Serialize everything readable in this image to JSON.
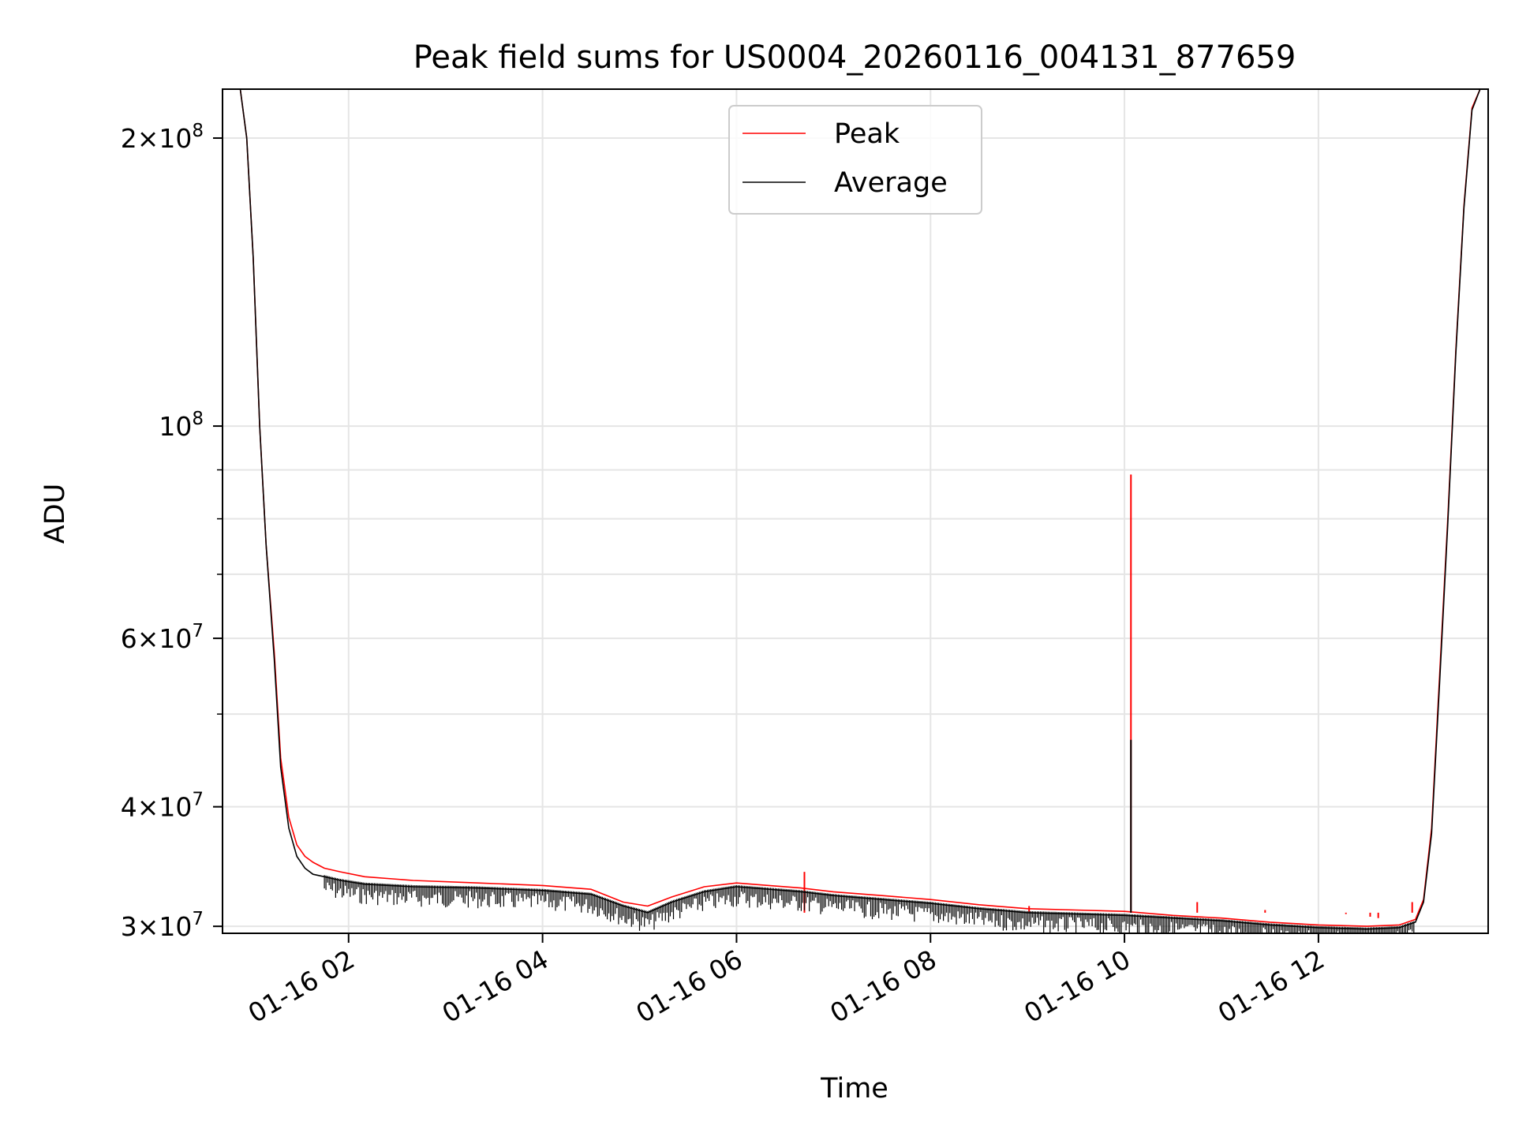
{
  "chart_data": {
    "type": "line",
    "title": "Peak field sums for US0004_20260116_004131_877659",
    "xlabel": "Time",
    "ylabel": "ADU",
    "y_scale": "log",
    "x_axis_type": "datetime",
    "xlim": [
      "2026-01-16 00:42",
      "2026-01-16 13:45"
    ],
    "ylim": [
      29500000,
      225000000
    ],
    "grid": true,
    "legend_placement": "upper center",
    "x_ticks": [
      {
        "value": "2026-01-16 02:00",
        "label": "01-16 02"
      },
      {
        "value": "2026-01-16 04:00",
        "label": "01-16 04"
      },
      {
        "value": "2026-01-16 06:00",
        "label": "01-16 06"
      },
      {
        "value": "2026-01-16 08:00",
        "label": "01-16 08"
      },
      {
        "value": "2026-01-16 10:00",
        "label": "01-16 10"
      },
      {
        "value": "2026-01-16 12:00",
        "label": "01-16 12"
      }
    ],
    "y_ticks": [
      {
        "value": 30000000,
        "mantissa": "3",
        "exponent": "7"
      },
      {
        "value": 40000000,
        "mantissa": "4",
        "exponent": "7"
      },
      {
        "value": 60000000,
        "mantissa": "6",
        "exponent": "7"
      },
      {
        "value": 100000000,
        "mantissa": "",
        "exponent": "8"
      },
      {
        "value": 200000000,
        "mantissa": "2",
        "exponent": "8"
      }
    ],
    "y_minor_ticks": [
      50000000,
      70000000,
      80000000,
      90000000
    ],
    "series": [
      {
        "name": "Peak",
        "color": "#ff0000",
        "x": [
          "2026-01-16 00:42",
          "2026-01-16 00:53",
          "2026-01-16 00:57",
          "2026-01-16 01:01",
          "2026-01-16 01:05",
          "2026-01-16 01:09",
          "2026-01-16 01:14",
          "2026-01-16 01:18",
          "2026-01-16 01:23",
          "2026-01-16 01:28",
          "2026-01-16 01:33",
          "2026-01-16 01:38",
          "2026-01-16 01:45",
          "2026-01-16 01:55",
          "2026-01-16 02:10",
          "2026-01-16 02:40",
          "2026-01-16 03:20",
          "2026-01-16 04:00",
          "2026-01-16 04:30",
          "2026-01-16 04:50",
          "2026-01-16 05:05",
          "2026-01-16 05:20",
          "2026-01-16 05:40",
          "2026-01-16 06:00",
          "2026-01-16 06:20",
          "2026-01-16 06:40",
          "2026-01-16 07:00",
          "2026-01-16 07:30",
          "2026-01-16 08:00",
          "2026-01-16 08:30",
          "2026-01-16 09:00",
          "2026-01-16 09:30",
          "2026-01-16 10:00",
          "2026-01-16 10:30",
          "2026-01-16 11:00",
          "2026-01-16 11:30",
          "2026-01-16 12:00",
          "2026-01-16 12:30",
          "2026-01-16 12:50",
          "2026-01-16 13:00",
          "2026-01-16 13:05",
          "2026-01-16 13:10",
          "2026-01-16 13:15",
          "2026-01-16 13:20",
          "2026-01-16 13:25",
          "2026-01-16 13:30",
          "2026-01-16 13:35",
          "2026-01-16 13:40",
          "2026-01-16 13:45"
        ],
        "y": [
          225000000,
          225000000,
          200000000,
          150000000,
          100000000,
          75000000,
          58000000,
          45000000,
          39000000,
          36500000,
          35500000,
          35000000,
          34500000,
          34200000,
          33800000,
          33500000,
          33300000,
          33100000,
          32800000,
          31800000,
          31500000,
          32200000,
          33000000,
          33300000,
          33100000,
          32900000,
          32600000,
          32300000,
          32000000,
          31600000,
          31300000,
          31200000,
          31100000,
          30800000,
          30600000,
          30300000,
          30100000,
          30000000,
          30100000,
          30500000,
          32000000,
          38000000,
          55000000,
          80000000,
          120000000,
          170000000,
          215000000,
          225000000,
          225000000
        ],
        "spikes": [
          {
            "x": "2026-01-16 10:04",
            "y": 89000000
          },
          {
            "x": "2026-01-16 06:42",
            "y": 34200000
          },
          {
            "x": "2026-01-16 10:45",
            "y": 31800000
          },
          {
            "x": "2026-01-16 11:27",
            "y": 31200000
          },
          {
            "x": "2026-01-16 12:00",
            "y": 31000000
          },
          {
            "x": "2026-01-16 12:17",
            "y": 30900000
          },
          {
            "x": "2026-01-16 12:32",
            "y": 30700000
          },
          {
            "x": "2026-01-16 12:37",
            "y": 30600000
          },
          {
            "x": "2026-01-16 12:58",
            "y": 31800000
          },
          {
            "x": "2026-01-16 09:01",
            "y": 31500000
          }
        ]
      },
      {
        "name": "Average",
        "color": "#000000",
        "x": [
          "2026-01-16 00:42",
          "2026-01-16 00:53",
          "2026-01-16 00:57",
          "2026-01-16 01:01",
          "2026-01-16 01:05",
          "2026-01-16 01:09",
          "2026-01-16 01:14",
          "2026-01-16 01:18",
          "2026-01-16 01:23",
          "2026-01-16 01:28",
          "2026-01-16 01:33",
          "2026-01-16 01:38",
          "2026-01-16 01:45",
          "2026-01-16 01:55",
          "2026-01-16 02:10",
          "2026-01-16 02:40",
          "2026-01-16 03:20",
          "2026-01-16 04:00",
          "2026-01-16 04:30",
          "2026-01-16 04:50",
          "2026-01-16 05:05",
          "2026-01-16 05:20",
          "2026-01-16 05:40",
          "2026-01-16 06:00",
          "2026-01-16 06:20",
          "2026-01-16 06:40",
          "2026-01-16 07:00",
          "2026-01-16 07:30",
          "2026-01-16 08:00",
          "2026-01-16 08:30",
          "2026-01-16 09:00",
          "2026-01-16 09:30",
          "2026-01-16 10:00",
          "2026-01-16 10:30",
          "2026-01-16 11:00",
          "2026-01-16 11:30",
          "2026-01-16 12:00",
          "2026-01-16 12:30",
          "2026-01-16 12:50",
          "2026-01-16 13:00",
          "2026-01-16 13:05",
          "2026-01-16 13:10",
          "2026-01-16 13:15",
          "2026-01-16 13:20",
          "2026-01-16 13:25",
          "2026-01-16 13:30",
          "2026-01-16 13:35",
          "2026-01-16 13:40",
          "2026-01-16 13:45"
        ],
        "y": [
          225000000,
          225000000,
          200000000,
          150000000,
          100000000,
          75000000,
          57000000,
          44000000,
          38000000,
          35500000,
          34500000,
          34000000,
          33800000,
          33500000,
          33200000,
          33000000,
          32900000,
          32700000,
          32400000,
          31500000,
          31000000,
          31800000,
          32600000,
          33000000,
          32800000,
          32600000,
          32300000,
          32000000,
          31700000,
          31300000,
          31000000,
          30900000,
          30800000,
          30600000,
          30400000,
          30100000,
          29900000,
          29800000,
          29900000,
          30300000,
          31800000,
          37500000,
          54000000,
          79000000,
          119000000,
          169000000,
          214000000,
          225000000,
          225000000
        ],
        "spikes": [
          {
            "x": "2026-01-16 10:04",
            "y": 47000000
          }
        ]
      }
    ]
  }
}
